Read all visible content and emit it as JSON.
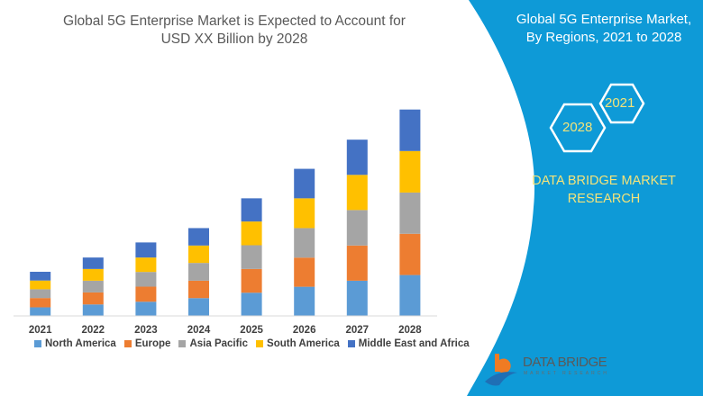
{
  "header": {
    "title_line1": "Global 5G Enterprise Market is Expected to Account for",
    "title_line2": "USD XX Billion by 2028"
  },
  "side_panel": {
    "title_line1": "Global 5G Enterprise Market,",
    "title_line2": "By Regions, 2021 to 2028",
    "hex_labels": [
      "2021",
      "2028"
    ],
    "brand_line1": "DATA BRIDGE MARKET",
    "brand_line2": "RESEARCH",
    "logo_text": "DATA BRIDGE",
    "logo_subtext": "MARKET RESEARCH",
    "panel_color": "#0e9ad7"
  },
  "chart_data": {
    "type": "bar",
    "stacked": true,
    "title": "Global 5G Enterprise Market is Expected to Account for USD XX Billion by 2028",
    "xlabel": "",
    "ylabel": "",
    "y_axis_visible": false,
    "grid": false,
    "legend_position": "bottom",
    "categories": [
      "2021",
      "2022",
      "2023",
      "2024",
      "2025",
      "2026",
      "2027",
      "2028"
    ],
    "ylim": [
      0,
      230
    ],
    "series": [
      {
        "name": "North America",
        "color": "#5b9bd5",
        "values": [
          9.5,
          12.7,
          15.7,
          19.7,
          25.7,
          32.3,
          39,
          45.3
        ]
      },
      {
        "name": "Europe",
        "color": "#ed7d31",
        "values": [
          10.3,
          13.3,
          16.7,
          19.3,
          26.3,
          32.3,
          39,
          45.7
        ]
      },
      {
        "name": "Asia Pacific",
        "color": "#a5a5a5",
        "values": [
          9.7,
          13,
          16.3,
          19.7,
          26.3,
          32.7,
          39.3,
          45.7
        ]
      },
      {
        "name": "South America",
        "color": "#ffc000",
        "values": [
          9.7,
          13,
          16,
          19.3,
          26.3,
          33,
          39,
          46
        ]
      },
      {
        "name": "Middle East and Africa",
        "color": "#4472c4",
        "values": [
          9.7,
          12.7,
          16.7,
          19.3,
          25.7,
          32.7,
          39,
          46
        ]
      }
    ]
  }
}
